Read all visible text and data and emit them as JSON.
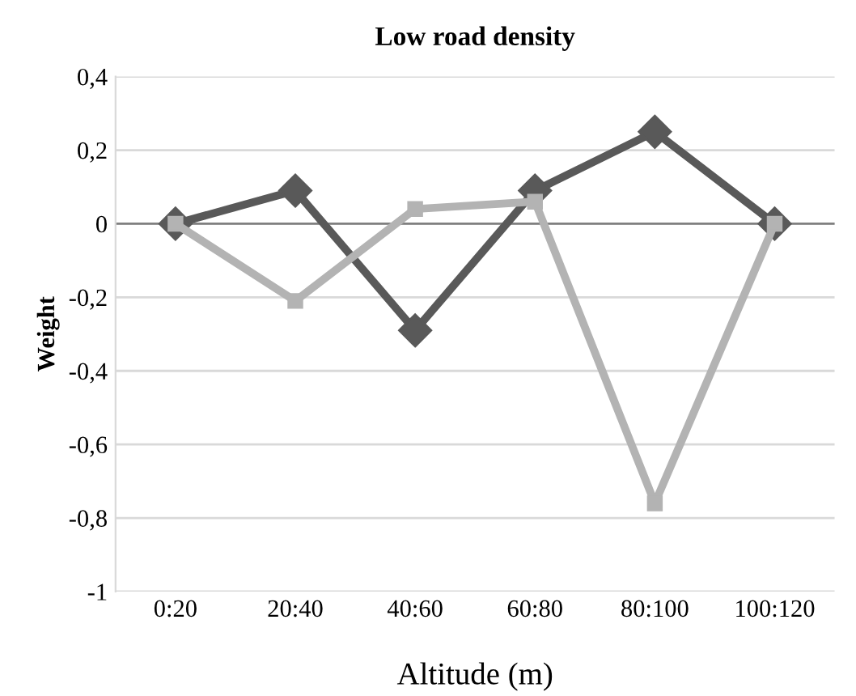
{
  "chart_data": {
    "type": "line",
    "title": "Low road density",
    "xlabel": "Altitude (m)",
    "ylabel": "Weight",
    "categories": [
      "0:20",
      "20:40",
      "40:60",
      "60:80",
      "80:100",
      "100:120"
    ],
    "series": [
      {
        "color": "#595959",
        "marker": "diamond",
        "values": [
          0,
          0.09,
          -0.29,
          0.09,
          0.25,
          0
        ]
      },
      {
        "color": "#b3b3b3",
        "marker": "square",
        "values": [
          0,
          -0.21,
          0.04,
          0.06,
          -0.76,
          0
        ]
      }
    ],
    "ylim": [
      -1,
      0.4
    ],
    "yticks": [
      {
        "value": -1,
        "label": "-1"
      },
      {
        "value": -0.8,
        "label": "-0,8"
      },
      {
        "value": -0.6,
        "label": "-0,6"
      },
      {
        "value": -0.4,
        "label": "-0,4"
      },
      {
        "value": -0.2,
        "label": "-0,2"
      },
      {
        "value": 0,
        "label": "0"
      },
      {
        "value": 0.2,
        "label": "0,2"
      },
      {
        "value": 0.4,
        "label": "0,4"
      }
    ],
    "ref_lines": [
      {
        "axis": "y",
        "value": 0,
        "color": "#808080"
      }
    ],
    "grid": "y",
    "legend": false
  }
}
